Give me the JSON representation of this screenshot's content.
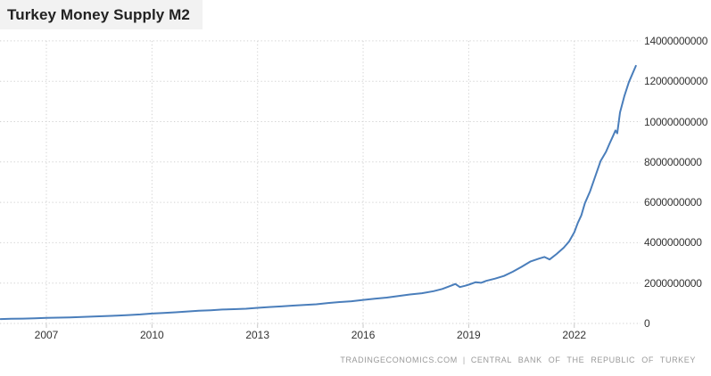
{
  "header": {
    "title": "Turkey Money Supply M2"
  },
  "footer": {
    "source": "TRADINGECONOMICS.COM",
    "separator": "|",
    "provider": "CENTRAL BANK OF THE REPUBLIC OF TURKEY"
  },
  "colors": {
    "line": "#4a7ebb",
    "grid": "#d2d2d2",
    "tick": "#c8c8c8",
    "title_bg": "#f2f2f2",
    "axis_text": "#333333",
    "attribution_text": "#999999"
  },
  "chart_data": {
    "type": "line",
    "title": "Turkey Money Supply M2",
    "xlabel": "",
    "ylabel": "",
    "legend": false,
    "grid": true,
    "grid_style": "dotted",
    "y_axis_position": "right",
    "xlim": [
      2005.7,
      2023.95
    ],
    "ylim": [
      0,
      14000000000
    ],
    "x_ticks": [
      2007,
      2010,
      2013,
      2016,
      2019,
      2022
    ],
    "y_ticks": [
      0,
      2000000000,
      4000000000,
      6000000000,
      8000000000,
      10000000000,
      12000000000,
      14000000000
    ],
    "series": [
      {
        "name": "Turkey Money Supply M2",
        "points": [
          [
            2005.7,
            215000000
          ],
          [
            2006.0,
            228000000
          ],
          [
            2006.33,
            238000000
          ],
          [
            2006.67,
            252000000
          ],
          [
            2007.0,
            272000000
          ],
          [
            2007.33,
            288000000
          ],
          [
            2007.67,
            302000000
          ],
          [
            2008.0,
            322000000
          ],
          [
            2008.33,
            344000000
          ],
          [
            2008.67,
            362000000
          ],
          [
            2009.0,
            388000000
          ],
          [
            2009.33,
            415000000
          ],
          [
            2009.67,
            448000000
          ],
          [
            2010.0,
            492000000
          ],
          [
            2010.33,
            522000000
          ],
          [
            2010.67,
            552000000
          ],
          [
            2011.0,
            592000000
          ],
          [
            2011.33,
            628000000
          ],
          [
            2011.67,
            655000000
          ],
          [
            2012.0,
            690000000
          ],
          [
            2012.33,
            706000000
          ],
          [
            2012.67,
            728000000
          ],
          [
            2013.0,
            772000000
          ],
          [
            2013.33,
            812000000
          ],
          [
            2013.67,
            845000000
          ],
          [
            2014.0,
            882000000
          ],
          [
            2014.33,
            915000000
          ],
          [
            2014.67,
            948000000
          ],
          [
            2015.0,
            1012000000
          ],
          [
            2015.33,
            1060000000
          ],
          [
            2015.67,
            1098000000
          ],
          [
            2016.0,
            1165000000
          ],
          [
            2016.33,
            1226000000
          ],
          [
            2016.67,
            1280000000
          ],
          [
            2017.0,
            1362000000
          ],
          [
            2017.33,
            1436000000
          ],
          [
            2017.67,
            1495000000
          ],
          [
            2018.0,
            1600000000
          ],
          [
            2018.25,
            1708000000
          ],
          [
            2018.5,
            1870000000
          ],
          [
            2018.62,
            1958000000
          ],
          [
            2018.75,
            1802000000
          ],
          [
            2018.9,
            1868000000
          ],
          [
            2019.0,
            1922000000
          ],
          [
            2019.2,
            2042000000
          ],
          [
            2019.35,
            2012000000
          ],
          [
            2019.5,
            2112000000
          ],
          [
            2019.75,
            2222000000
          ],
          [
            2020.0,
            2352000000
          ],
          [
            2020.25,
            2562000000
          ],
          [
            2020.5,
            2802000000
          ],
          [
            2020.75,
            3062000000
          ],
          [
            2021.0,
            3212000000
          ],
          [
            2021.15,
            3292000000
          ],
          [
            2021.3,
            3172000000
          ],
          [
            2021.5,
            3442000000
          ],
          [
            2021.7,
            3752000000
          ],
          [
            2021.85,
            4052000000
          ],
          [
            2022.0,
            4522000000
          ],
          [
            2022.1,
            4982000000
          ],
          [
            2022.2,
            5352000000
          ],
          [
            2022.3,
            5952000000
          ],
          [
            2022.45,
            6552000000
          ],
          [
            2022.6,
            7302000000
          ],
          [
            2022.75,
            8052000000
          ],
          [
            2022.9,
            8502000000
          ],
          [
            2023.0,
            8902000000
          ],
          [
            2023.1,
            9282000000
          ],
          [
            2023.17,
            9562000000
          ],
          [
            2023.22,
            9422000000
          ],
          [
            2023.3,
            10452000000
          ],
          [
            2023.42,
            11252000000
          ],
          [
            2023.55,
            11952000000
          ],
          [
            2023.65,
            12352000000
          ],
          [
            2023.75,
            12762000000
          ]
        ]
      }
    ]
  }
}
